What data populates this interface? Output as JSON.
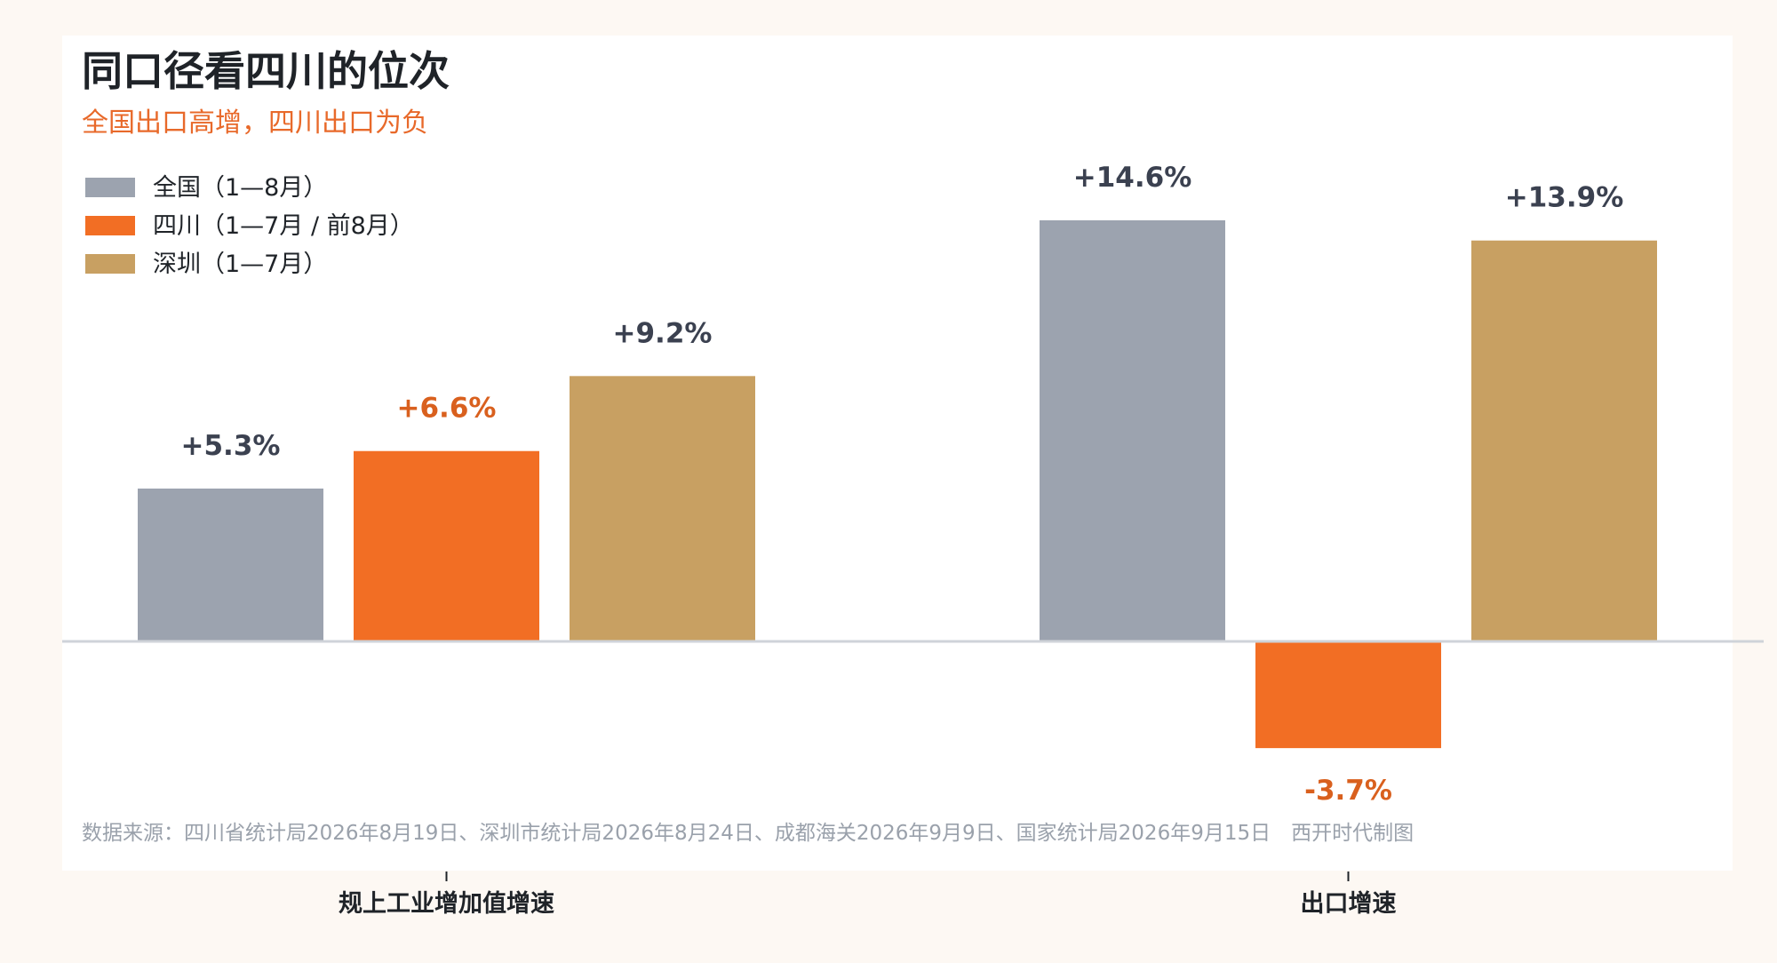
{
  "chart_data": {
    "type": "bar",
    "title": "同口径看四川的位次",
    "subtitle": "全国出口高增，四川出口为负",
    "categories": [
      "规上工业增加值增速",
      "出口增速"
    ],
    "series": [
      {
        "name": "全国（1—8月）",
        "color": "#9ca3af",
        "values": [
          5.3,
          14.6
        ],
        "labels": [
          "+5.3%",
          "+14.6%"
        ]
      },
      {
        "name": "四川（1—7月 / 前8月）",
        "color": "#f26e24",
        "values": [
          6.6,
          -3.7
        ],
        "labels": [
          "+6.6%",
          "-3.7%"
        ]
      },
      {
        "name": "深圳（1—7月）",
        "color": "#c8a062",
        "values": [
          9.2,
          13.9
        ],
        "labels": [
          "+9.2%",
          "+13.9%"
        ]
      }
    ],
    "ylim": [
      -5.2,
      14.6
    ],
    "grid": false,
    "legend_position": "top-left",
    "source": "数据来源：四川省统计局2026年8月19日、深圳市统计局2026年8月24日、成都海关2026年9月9日、国家统计局2026年9月15日　西开时代制图"
  },
  "colors": {
    "background": "#fdf8f3",
    "panel": "#ffffff",
    "title": "#1f2328",
    "subtitle": "#e8692a",
    "label_dark": "#3b4150",
    "label_accent": "#d9601e",
    "source_text": "#9aa1ab",
    "baseline": "#cfd3d9"
  }
}
